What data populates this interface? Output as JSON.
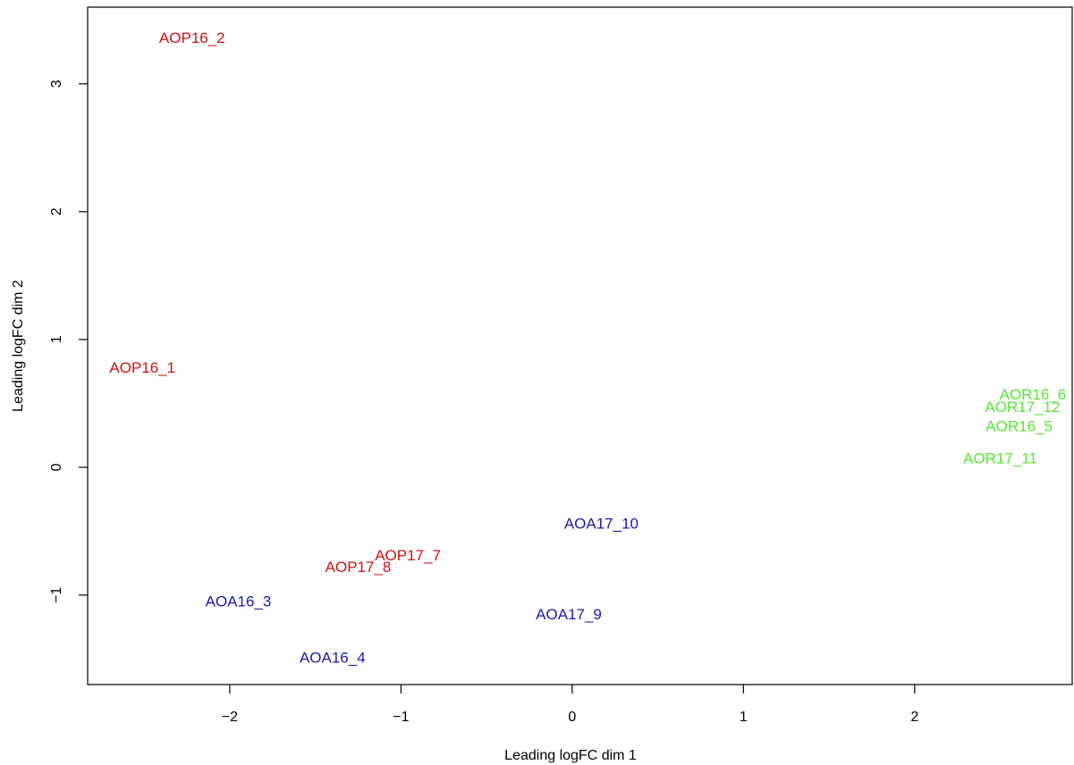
{
  "chart_data": {
    "type": "scatter",
    "title": "",
    "xlabel": "Leading logFC dim 1",
    "ylabel": "Leading logFC dim 2",
    "xlim": [
      -2.83,
      2.92
    ],
    "ylim": [
      -1.7,
      3.6
    ],
    "x_ticks": [
      -2,
      -1,
      0,
      1,
      2
    ],
    "x_tick_labels": [
      "−2",
      "−1",
      "0",
      "1",
      "2"
    ],
    "y_ticks": [
      -1,
      0,
      1,
      2,
      3
    ],
    "y_tick_labels": [
      "−1",
      "0",
      "1",
      "2",
      "3"
    ],
    "grid": false,
    "legend": "none",
    "marker": "text-label",
    "colors": {
      "AOP": "#cc1111",
      "AOA": "#1a1aa8",
      "AOR": "#55e633"
    },
    "points": [
      {
        "label": "AOP16_2",
        "x": -2.22,
        "y": 3.36,
        "group": "AOP"
      },
      {
        "label": "AOP16_1",
        "x": -2.51,
        "y": 0.78,
        "group": "AOP"
      },
      {
        "label": "AOP17_7",
        "x": -0.96,
        "y": -0.69,
        "group": "AOP"
      },
      {
        "label": "AOP17_8",
        "x": -1.25,
        "y": -0.78,
        "group": "AOP"
      },
      {
        "label": "AOA16_3",
        "x": -1.95,
        "y": -1.05,
        "group": "AOA"
      },
      {
        "label": "AOA16_4",
        "x": -1.4,
        "y": -1.49,
        "group": "AOA"
      },
      {
        "label": "AOA17_10",
        "x": 0.17,
        "y": -0.44,
        "group": "AOA"
      },
      {
        "label": "AOA17_9",
        "x": -0.02,
        "y": -1.15,
        "group": "AOA"
      },
      {
        "label": "AOR16_6",
        "x": 2.69,
        "y": 0.57,
        "group": "AOR"
      },
      {
        "label": "AOR17_12",
        "x": 2.63,
        "y": 0.47,
        "group": "AOR"
      },
      {
        "label": "AOR16_5",
        "x": 2.61,
        "y": 0.32,
        "group": "AOR"
      },
      {
        "label": "AOR17_11",
        "x": 2.5,
        "y": 0.07,
        "group": "AOR"
      }
    ]
  }
}
